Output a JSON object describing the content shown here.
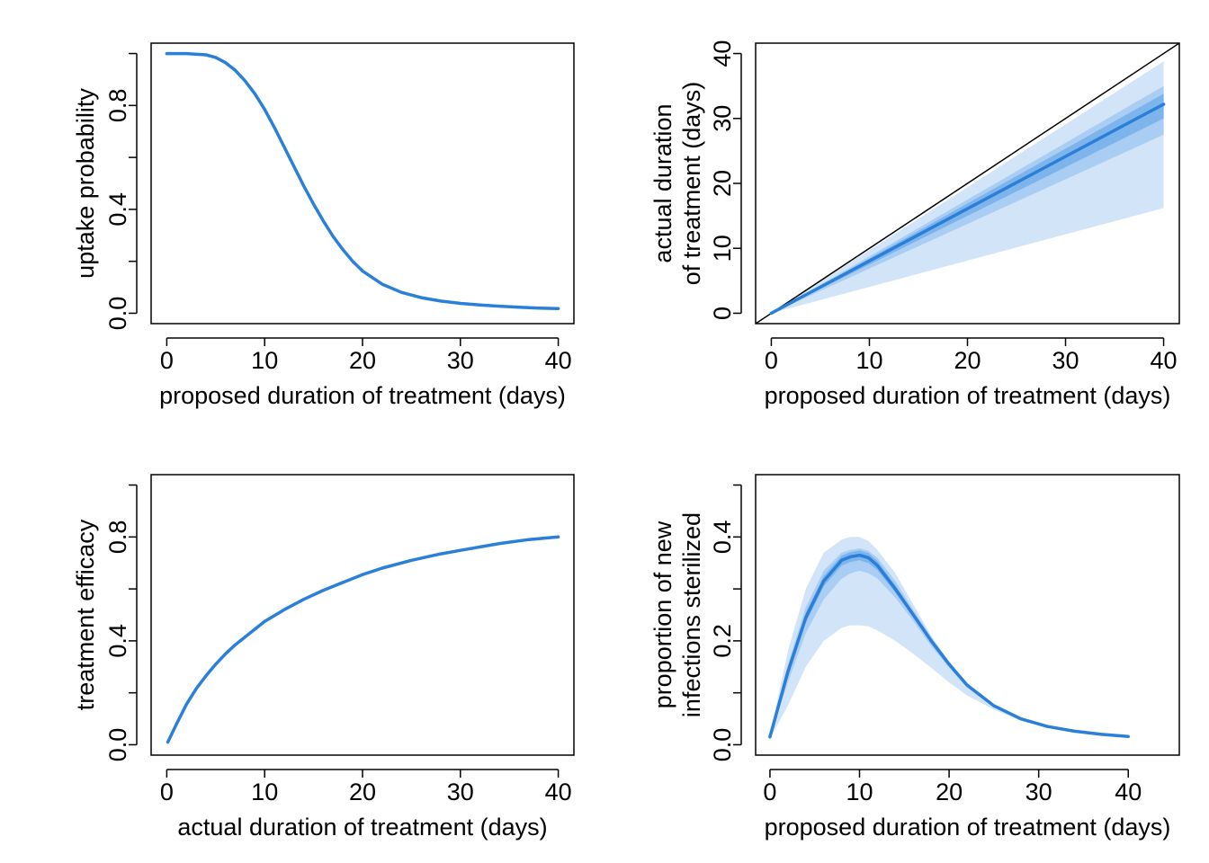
{
  "colors": {
    "line": "#2a7fd9",
    "band_outer": "#d2e4f8",
    "band_mid": "#a9cdf3",
    "band_inner": "#7eb4ec",
    "axis": "#000000"
  },
  "chart_data": [
    {
      "id": "uptake",
      "type": "line",
      "title": "",
      "xlabel": [
        "proposed duration of treatment (days)"
      ],
      "ylabel": [
        "uptake probability"
      ],
      "xlim": [
        -1.6,
        41.6
      ],
      "ylim": [
        -0.04,
        1.04
      ],
      "xticks": [
        0,
        10,
        20,
        30,
        40
      ],
      "yticks": [
        0.0,
        0.2,
        0.4,
        0.6,
        0.8,
        1.0
      ],
      "ytick_labels": [
        "0.0",
        "",
        "0.4",
        "",
        "0.8",
        ""
      ],
      "x": [
        0,
        2,
        4,
        5,
        6,
        7,
        8,
        9,
        10,
        11,
        12,
        13,
        14,
        15,
        16,
        17,
        18,
        19,
        20,
        22,
        24,
        26,
        28,
        30,
        32,
        34,
        36,
        38,
        40
      ],
      "series": [
        {
          "values": [
            1.0,
            1.0,
            0.995,
            0.985,
            0.965,
            0.935,
            0.895,
            0.845,
            0.785,
            0.715,
            0.64,
            0.565,
            0.49,
            0.42,
            0.355,
            0.295,
            0.245,
            0.2,
            0.163,
            0.112,
            0.08,
            0.06,
            0.047,
            0.038,
            0.032,
            0.027,
            0.023,
            0.02,
            0.018
          ]
        }
      ]
    },
    {
      "id": "actual-vs-proposed",
      "type": "area",
      "title": "",
      "xlabel": [
        "proposed duration of treatment (days)"
      ],
      "ylabel": [
        "actual duration",
        "of treatment (days)"
      ],
      "xlim": [
        -1.6,
        41.6
      ],
      "ylim": [
        -1.6,
        41.6
      ],
      "xticks": [
        0,
        10,
        20,
        30,
        40
      ],
      "yticks": [
        0,
        10,
        20,
        30,
        40
      ],
      "ytick_labels": [
        "0",
        "10",
        "20",
        "30",
        "40"
      ],
      "reference_line": {
        "x": [
          -1.6,
          41.6
        ],
        "y": [
          -1.6,
          41.6
        ]
      },
      "x": [
        0,
        40
      ],
      "series": [
        {
          "values": [
            0,
            32.2
          ]
        }
      ],
      "bands": [
        {
          "lower": [
            0,
            16.2
          ],
          "upper": [
            0,
            38.8
          ]
        },
        {
          "lower": [
            0,
            27.5
          ],
          "upper": [
            0,
            35.0
          ]
        },
        {
          "lower": [
            0,
            30.0
          ],
          "upper": [
            0,
            33.8
          ]
        }
      ]
    },
    {
      "id": "efficacy",
      "type": "line",
      "title": "",
      "xlabel": [
        "actual duration of treatment (days)"
      ],
      "ylabel": [
        "treatment efficacy"
      ],
      "xlim": [
        -1.6,
        41.6
      ],
      "ylim": [
        -0.04,
        1.04
      ],
      "xticks": [
        0,
        10,
        20,
        30,
        40
      ],
      "yticks": [
        0.0,
        0.2,
        0.4,
        0.6,
        0.8,
        1.0
      ],
      "ytick_labels": [
        "0.0",
        "",
        "0.4",
        "",
        "0.8",
        ""
      ],
      "x": [
        0.1,
        1,
        2,
        3,
        4,
        5,
        6,
        7,
        8,
        10,
        12,
        14,
        16,
        18,
        20,
        22,
        25,
        28,
        31,
        34,
        37,
        40
      ],
      "series": [
        {
          "values": [
            0.01,
            0.08,
            0.155,
            0.215,
            0.265,
            0.31,
            0.35,
            0.385,
            0.415,
            0.475,
            0.52,
            0.56,
            0.595,
            0.625,
            0.655,
            0.68,
            0.71,
            0.735,
            0.755,
            0.775,
            0.79,
            0.8
          ]
        }
      ]
    },
    {
      "id": "sterilized",
      "type": "area",
      "title": "",
      "xlabel": [
        "proposed duration of treatment (days)"
      ],
      "ylabel": [
        "proportion of new",
        "infections sterilized"
      ],
      "xlim": [
        -1.6,
        45.7
      ],
      "ylim": [
        -0.02,
        0.52
      ],
      "xticks": [
        0,
        10,
        20,
        30,
        40
      ],
      "yticks": [
        0.0,
        0.1,
        0.2,
        0.3,
        0.4,
        0.5
      ],
      "ytick_labels": [
        "0.0",
        "",
        "0.2",
        "",
        "0.4",
        ""
      ],
      "x": [
        0,
        2,
        4,
        6,
        8,
        9,
        10,
        11,
        12,
        14,
        16,
        18,
        20,
        22,
        25,
        28,
        31,
        34,
        37,
        40
      ],
      "series": [
        {
          "values": [
            0.015,
            0.14,
            0.245,
            0.315,
            0.355,
            0.362,
            0.365,
            0.36,
            0.345,
            0.3,
            0.25,
            0.2,
            0.155,
            0.115,
            0.075,
            0.05,
            0.035,
            0.026,
            0.02,
            0.016
          ]
        }
      ],
      "bands": [
        {
          "lower": [
            0.012,
            0.075,
            0.15,
            0.2,
            0.225,
            0.23,
            0.23,
            0.228,
            0.22,
            0.2,
            0.175,
            0.148,
            0.12,
            0.095,
            0.068,
            0.046,
            0.033,
            0.025,
            0.019,
            0.015
          ],
          "upper": [
            0.018,
            0.18,
            0.3,
            0.37,
            0.395,
            0.4,
            0.4,
            0.392,
            0.375,
            0.33,
            0.27,
            0.21,
            0.16,
            0.118,
            0.078,
            0.053,
            0.037,
            0.027,
            0.021,
            0.017
          ]
        },
        {
          "lower": [
            0.013,
            0.12,
            0.215,
            0.28,
            0.32,
            0.33,
            0.335,
            0.33,
            0.32,
            0.283,
            0.238,
            0.19,
            0.148,
            0.11,
            0.072,
            0.048,
            0.034,
            0.025,
            0.02,
            0.016
          ],
          "upper": [
            0.017,
            0.155,
            0.265,
            0.335,
            0.37,
            0.375,
            0.378,
            0.373,
            0.36,
            0.315,
            0.26,
            0.207,
            0.16,
            0.118,
            0.077,
            0.052,
            0.036,
            0.027,
            0.021,
            0.017
          ]
        },
        {
          "lower": [
            0.014,
            0.133,
            0.235,
            0.305,
            0.345,
            0.352,
            0.355,
            0.35,
            0.336,
            0.293,
            0.245,
            0.196,
            0.152,
            0.113,
            0.074,
            0.049,
            0.035,
            0.026,
            0.02,
            0.016
          ],
          "upper": [
            0.016,
            0.147,
            0.255,
            0.325,
            0.364,
            0.371,
            0.374,
            0.369,
            0.354,
            0.307,
            0.255,
            0.204,
            0.158,
            0.117,
            0.076,
            0.051,
            0.036,
            0.027,
            0.021,
            0.017
          ]
        }
      ]
    }
  ]
}
